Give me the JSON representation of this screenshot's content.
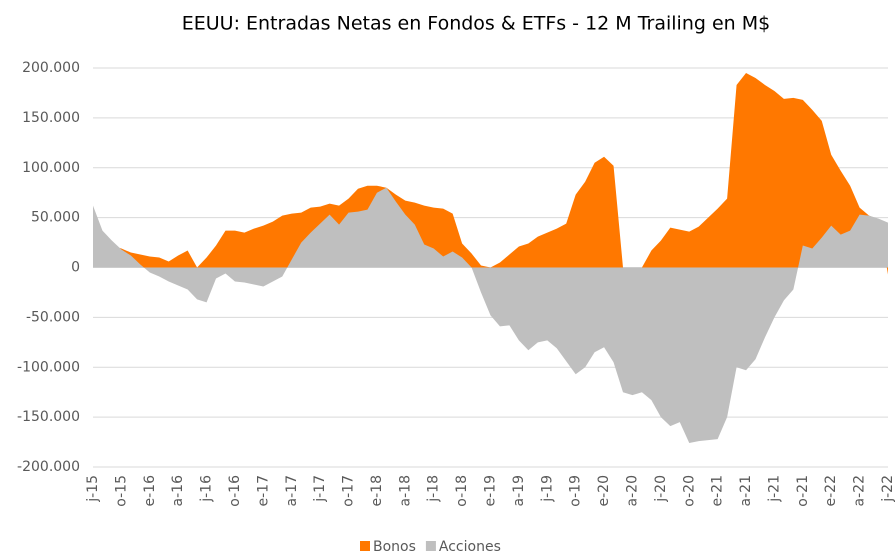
{
  "chart_data": {
    "type": "area",
    "title": "EEUU: Entradas Netas en Fondos & ETFs  -  12 M  Trailing en M$",
    "categories": [
      "j-15",
      null,
      null,
      "o-15",
      null,
      null,
      "e-16",
      null,
      null,
      "a-16",
      null,
      null,
      "j-16",
      null,
      null,
      "o-16",
      null,
      null,
      "e-17",
      null,
      null,
      "a-17",
      null,
      null,
      "j-17",
      null,
      null,
      "o-17",
      null,
      null,
      "e-18",
      null,
      null,
      "a-18",
      null,
      null,
      "j-18",
      null,
      null,
      "o-18",
      null,
      null,
      "e-19",
      null,
      null,
      "a-19",
      null,
      null,
      "j-19",
      null,
      null,
      "o-19",
      null,
      null,
      "e-20",
      null,
      null,
      "a-20",
      null,
      null,
      "j-20",
      null,
      null,
      "o-20",
      null,
      null,
      "e-21",
      null,
      null,
      "a-21",
      null,
      null,
      "j-21",
      null,
      null,
      "o-21",
      null,
      null,
      "e-22",
      null,
      null,
      "a-22",
      null,
      null,
      "j-22"
    ],
    "series": [
      {
        "name": "Bonos",
        "color": "#ff7800",
        "values": [
          37000,
          28000,
          22000,
          19000,
          15000,
          13000,
          11000,
          10000,
          6000,
          12000,
          17000,
          0,
          10000,
          22000,
          37000,
          37000,
          35000,
          39000,
          42000,
          46000,
          52000,
          54000,
          55000,
          60000,
          61000,
          64000,
          62000,
          69000,
          79000,
          82000,
          82000,
          80000,
          73000,
          67000,
          65000,
          62000,
          60000,
          59000,
          54000,
          24000,
          14000,
          2000,
          0,
          5000,
          13000,
          21000,
          24000,
          31000,
          35000,
          39000,
          44000,
          73000,
          86000,
          105000,
          111000,
          102000,
          0,
          0,
          0,
          17000,
          27000,
          40000,
          38000,
          36000,
          41000,
          50000,
          59000,
          69000,
          183000,
          195000,
          190000,
          183000,
          177000,
          169000,
          170000,
          168000,
          158000,
          147000,
          113000,
          97000,
          82000,
          60000,
          52000,
          48000,
          -7000
        ]
      },
      {
        "name": "Acciones",
        "color": "#bfbfbf",
        "values": [
          62000,
          37000,
          27000,
          18000,
          12000,
          3000,
          -5000,
          -9000,
          -14000,
          -18000,
          -22000,
          -32000,
          -35000,
          -11000,
          -6000,
          -14000,
          -15000,
          -17000,
          -19000,
          -14000,
          -9000,
          8000,
          25000,
          35000,
          44000,
          53000,
          43000,
          55000,
          56000,
          58000,
          75000,
          80000,
          66000,
          53000,
          43000,
          23000,
          19000,
          11000,
          16000,
          10000,
          0,
          -25000,
          -48000,
          -59000,
          -58000,
          -73000,
          -83000,
          -75000,
          -73000,
          -81000,
          -94000,
          -107000,
          -100000,
          -85000,
          -80000,
          -95000,
          -125000,
          -128000,
          -125000,
          -133000,
          -150000,
          -159000,
          -155000,
          -176000,
          -174000,
          -173000,
          -172000,
          -150000,
          -100000,
          -103000,
          -92000,
          -70000,
          -50000,
          -33000,
          -22000,
          22000,
          19000,
          30000,
          42000,
          33000,
          37000,
          53000,
          52000,
          49000,
          45000
        ]
      }
    ],
    "ylim": [
      -200000,
      200000
    ],
    "yticks": [
      {
        "value": -200000,
        "label": "-200.000"
      },
      {
        "value": -150000,
        "label": "-150.000"
      },
      {
        "value": -100000,
        "label": "-100.000"
      },
      {
        "value": -50000,
        "label": "-50.000"
      },
      0,
      {
        "value": 50000,
        "label": "50.000"
      },
      {
        "value": 100000,
        "label": "100.000"
      },
      {
        "value": 150000,
        "label": "150.000"
      },
      {
        "value": 200000,
        "label": "200.000"
      }
    ],
    "grid": true,
    "legend": "bottom"
  }
}
